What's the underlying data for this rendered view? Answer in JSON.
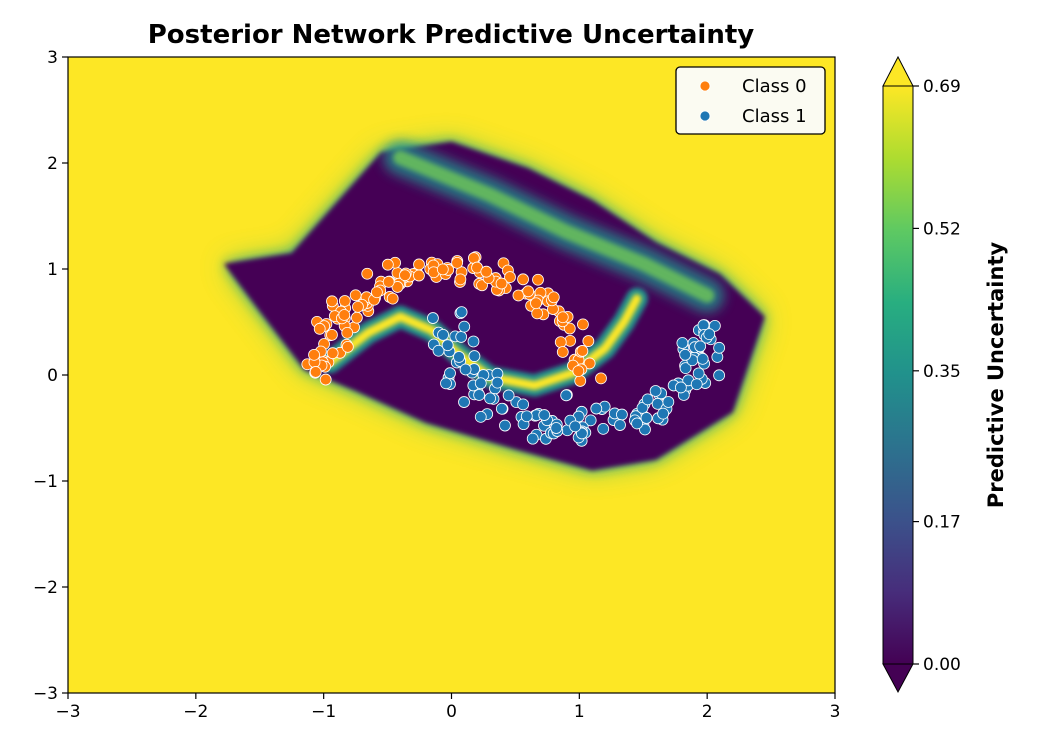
{
  "chart_data": {
    "type": "contour",
    "title": "Posterior Network Predictive Uncertainty",
    "xlim": [
      -3,
      3
    ],
    "ylim": [
      -3,
      3
    ],
    "x_ticks": [
      -3,
      -2,
      -1,
      0,
      1,
      2,
      3
    ],
    "y_ticks": [
      -3,
      -2,
      -1,
      0,
      1,
      2,
      3
    ],
    "x_tick_labels": [
      "−3",
      "−2",
      "−1",
      "0",
      "1",
      "2",
      "3"
    ],
    "y_tick_labels": [
      "−3",
      "−2",
      "−1",
      "0",
      "1",
      "2",
      "3"
    ],
    "colorbar": {
      "label": "Predictive Uncertainty",
      "colormap": "viridis",
      "range": [
        0.0,
        0.69
      ],
      "ticks": [
        0.0,
        0.17,
        0.35,
        0.52,
        0.69
      ],
      "tick_labels": [
        "0.00",
        "0.17",
        "0.35",
        "0.52",
        "0.69"
      ],
      "extend": "both"
    },
    "legend": {
      "placement": "top-right",
      "entries": [
        {
          "label": "Class 0",
          "color": "#ff7f0e"
        },
        {
          "label": "Class 1",
          "color": "#1f77b4"
        }
      ]
    },
    "series": [
      {
        "name": "Class 0",
        "color": "#ff7f0e",
        "shape": "upper moon arc",
        "center": [
          0.0,
          0.0
        ],
        "radius": 1.0,
        "angle_range_deg": [
          0,
          180
        ],
        "noise": 0.08,
        "approx_points": 150
      },
      {
        "name": "Class 1",
        "color": "#1f77b4",
        "shape": "lower moon arc",
        "center": [
          1.0,
          0.5
        ],
        "radius": 1.0,
        "angle_range_deg": [
          180,
          360
        ],
        "noise": 0.08,
        "approx_points": 150
      }
    ],
    "uncertainty_field": {
      "high_value": 0.69,
      "low_value": 0.0,
      "low_region_polygon_data": [
        [
          -1.78,
          1.05
        ],
        [
          -1.25,
          1.15
        ],
        [
          -0.55,
          2.1
        ],
        [
          0.0,
          2.2
        ],
        [
          0.6,
          1.95
        ],
        [
          1.1,
          1.65
        ],
        [
          1.6,
          1.25
        ],
        [
          2.1,
          0.95
        ],
        [
          2.45,
          0.55
        ],
        [
          2.2,
          -0.35
        ],
        [
          1.6,
          -0.8
        ],
        [
          1.1,
          -0.9
        ],
        [
          0.5,
          -0.7
        ],
        [
          -0.2,
          -0.45
        ],
        [
          -0.75,
          -0.15
        ],
        [
          -1.15,
          0.05
        ],
        [
          -1.5,
          0.6
        ]
      ],
      "boundary_band_curve": [
        [
          -0.95,
          0.12
        ],
        [
          -0.65,
          0.4
        ],
        [
          -0.4,
          0.55
        ],
        [
          -0.15,
          0.42
        ],
        [
          0.05,
          0.2
        ],
        [
          0.3,
          -0.02
        ],
        [
          0.65,
          -0.1
        ],
        [
          0.95,
          0.02
        ],
        [
          1.2,
          0.25
        ],
        [
          1.35,
          0.5
        ],
        [
          1.45,
          0.72
        ]
      ],
      "upper_mid_band_curve": [
        [
          -0.4,
          2.05
        ],
        [
          0.3,
          1.7
        ],
        [
          0.9,
          1.35
        ],
        [
          1.5,
          1.05
        ],
        [
          2.0,
          0.75
        ]
      ]
    }
  }
}
